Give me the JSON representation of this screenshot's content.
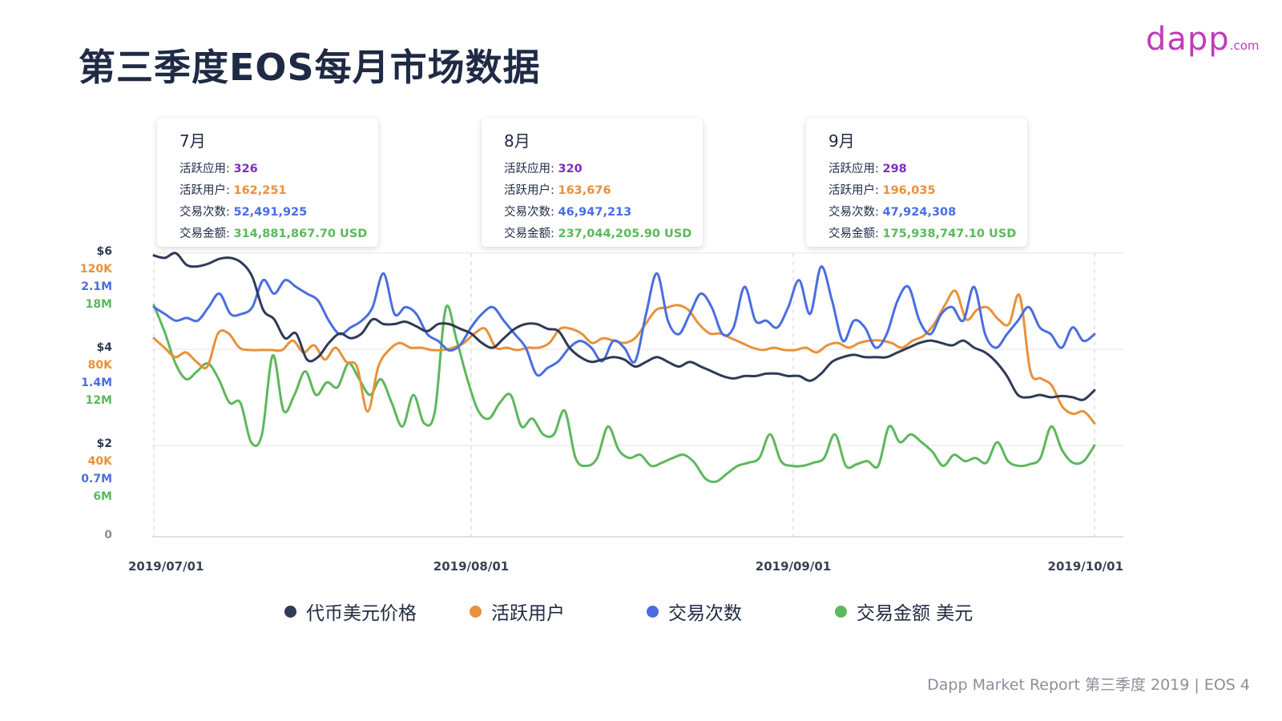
{
  "page_title": "第三季度EOS每月市场数据",
  "logo": {
    "main": "dapp",
    "suffix": ".com"
  },
  "colors": {
    "price": "#2f3a56",
    "users": "#e8913a",
    "transactions": "#4a6ee0",
    "volume": "#5cb85c",
    "apps_value": "#7b2fbf",
    "grid": "#e6e6e6"
  },
  "cards": [
    {
      "title": "7月",
      "rows": [
        {
          "label": "活跃应用: ",
          "value": "326"
        },
        {
          "label": "活跃用户: ",
          "value": "162,251"
        },
        {
          "label": "交易次数: ",
          "value": "52,491,925"
        },
        {
          "label": "交易金额: ",
          "value": "314,881,867.70 USD"
        }
      ]
    },
    {
      "title": "8月",
      "rows": [
        {
          "label": "活跃应用: ",
          "value": "320"
        },
        {
          "label": "活跃用户: ",
          "value": "163,676"
        },
        {
          "label": "交易次数: ",
          "value": "46,947,213"
        },
        {
          "label": "交易金额: ",
          "value": "237,044,205.90 USD"
        }
      ]
    },
    {
      "title": "9月",
      "rows": [
        {
          "label": "活跃应用: ",
          "value": "298"
        },
        {
          "label": "活跃用户: ",
          "value": "196,035"
        },
        {
          "label": "交易次数: ",
          "value": "47,924,308"
        },
        {
          "label": "交易金额: ",
          "value": "175,938,747.10 USD"
        }
      ]
    }
  ],
  "chart_data": {
    "type": "line",
    "title": "",
    "x_ticks": [
      "2019/07/01",
      "2019/08/01",
      "2019/09/01",
      "2019/10/01"
    ],
    "y_tick_groups": [
      {
        "labels": [
          "$6",
          "120K",
          "2.1M",
          "18M"
        ]
      },
      {
        "labels": [
          "$4",
          "80K",
          "1.4M",
          "12M"
        ]
      },
      {
        "labels": [
          "$2",
          "40K",
          "0.7M",
          "6M"
        ]
      },
      {
        "labels": [
          "0"
        ]
      }
    ],
    "series": [
      {
        "name": "代币美元价格",
        "unit": "USD",
        "ylim": [
          0,
          6
        ],
        "values": [
          5.95,
          5.9,
          6.0,
          5.75,
          5.72,
          5.78,
          5.88,
          5.9,
          5.8,
          5.5,
          4.8,
          4.6,
          4.2,
          4.3,
          3.75,
          3.8,
          4.1,
          4.3,
          4.2,
          4.3,
          4.6,
          4.5,
          4.5,
          4.55,
          4.45,
          4.35,
          4.5,
          4.5,
          4.4,
          4.3,
          4.1,
          4.0,
          4.2,
          4.4,
          4.5,
          4.5,
          4.4,
          4.35,
          4.0,
          3.8,
          3.7,
          3.75,
          3.8,
          3.75,
          3.6,
          3.7,
          3.8,
          3.7,
          3.6,
          3.7,
          3.6,
          3.5,
          3.4,
          3.35,
          3.4,
          3.4,
          3.45,
          3.45,
          3.4,
          3.4,
          3.3,
          3.45,
          3.7,
          3.8,
          3.85,
          3.8,
          3.8,
          3.8,
          3.9,
          4.0,
          4.1,
          4.15,
          4.1,
          4.05,
          4.15,
          4.0,
          3.9,
          3.7,
          3.4,
          3.0,
          2.95,
          3.0,
          2.95,
          2.98,
          2.95,
          2.9,
          3.1
        ]
      },
      {
        "name": "活跃用户",
        "unit": "users",
        "ylim": [
          0,
          120000
        ],
        "values": [
          84000,
          80000,
          76000,
          78000,
          74000,
          72000,
          86000,
          86000,
          80000,
          79000,
          79000,
          79000,
          79000,
          83000,
          78000,
          81000,
          75000,
          80000,
          74000,
          72000,
          53000,
          72000,
          79000,
          82000,
          80000,
          80000,
          79000,
          79000,
          80000,
          82000,
          86000,
          88000,
          80000,
          80000,
          79000,
          80000,
          80000,
          82000,
          88000,
          88000,
          86000,
          82000,
          84000,
          83000,
          82000,
          84000,
          90000,
          96000,
          97000,
          98000,
          96000,
          90000,
          86000,
          86000,
          84000,
          82000,
          80000,
          79000,
          80000,
          79000,
          79000,
          80000,
          78000,
          81000,
          82000,
          80000,
          82000,
          83000,
          83000,
          82000,
          80000,
          83000,
          85000,
          90000,
          98000,
          104000,
          92000,
          96000,
          97000,
          92000,
          90000,
          102000,
          70000,
          67000,
          64000,
          55000,
          52000,
          53000,
          48000
        ]
      },
      {
        "name": "交易次数",
        "unit": "transactions",
        "ylim": [
          0,
          2100000
        ],
        "values": [
          1700000,
          1650000,
          1600000,
          1620000,
          1600000,
          1700000,
          1800000,
          1650000,
          1650000,
          1700000,
          1900000,
          1800000,
          1900000,
          1850000,
          1800000,
          1750000,
          1600000,
          1500000,
          1550000,
          1600000,
          1700000,
          1950000,
          1650000,
          1700000,
          1650000,
          1500000,
          1450000,
          1380000,
          1420000,
          1550000,
          1650000,
          1700000,
          1600000,
          1500000,
          1400000,
          1200000,
          1250000,
          1300000,
          1400000,
          1450000,
          1400000,
          1300000,
          1450000,
          1400000,
          1300000,
          1650000,
          1950000,
          1600000,
          1500000,
          1650000,
          1800000,
          1700000,
          1500000,
          1550000,
          1850000,
          1600000,
          1600000,
          1550000,
          1700000,
          1900000,
          1650000,
          2000000,
          1750000,
          1450000,
          1600000,
          1550000,
          1400000,
          1500000,
          1750000,
          1850000,
          1600000,
          1500000,
          1650000,
          1700000,
          1600000,
          1850000,
          1500000,
          1400000,
          1500000,
          1600000,
          1700000,
          1550000,
          1500000,
          1400000,
          1550000,
          1450000,
          1500000
        ]
      },
      {
        "name": "交易金额 美元",
        "unit": "USD",
        "ylim": [
          0,
          18000000
        ],
        "values": [
          14700000,
          13000000,
          11000000,
          10000000,
          10500000,
          11000000,
          10000000,
          8500000,
          8500000,
          6000000,
          6500000,
          11500000,
          8000000,
          9000000,
          10500000,
          9000000,
          9800000,
          9500000,
          11000000,
          10000000,
          9000000,
          10000000,
          8500000,
          7000000,
          9000000,
          7200000,
          8000000,
          14500000,
          12500000,
          10000000,
          8000000,
          7500000,
          8500000,
          9000000,
          7000000,
          7500000,
          6500000,
          6500000,
          8000000,
          5000000,
          4500000,
          5000000,
          7000000,
          5500000,
          5000000,
          5200000,
          4500000,
          4700000,
          5000000,
          5200000,
          4700000,
          3700000,
          3500000,
          4000000,
          4500000,
          4700000,
          5000000,
          6500000,
          4800000,
          4500000,
          4500000,
          4700000,
          5000000,
          6500000,
          4500000,
          4600000,
          4800000,
          4500000,
          7000000,
          6000000,
          6500000,
          6000000,
          5400000,
          4500000,
          5200000,
          4800000,
          5000000,
          4700000,
          6000000,
          4800000,
          4500000,
          4600000,
          5000000,
          7000000,
          5500000,
          4700000,
          4800000,
          5800000
        ]
      }
    ]
  },
  "legend": [
    {
      "label": "代币美元价格",
      "color": "#2f3a56"
    },
    {
      "label": "活跃用户",
      "color": "#e8913a"
    },
    {
      "label": "交易次数",
      "color": "#4a6ee0"
    },
    {
      "label": "交易金额 美元",
      "color": "#5cb85c"
    }
  ],
  "footer": "Dapp Market Report 第三季度 2019  |  EOS 4"
}
